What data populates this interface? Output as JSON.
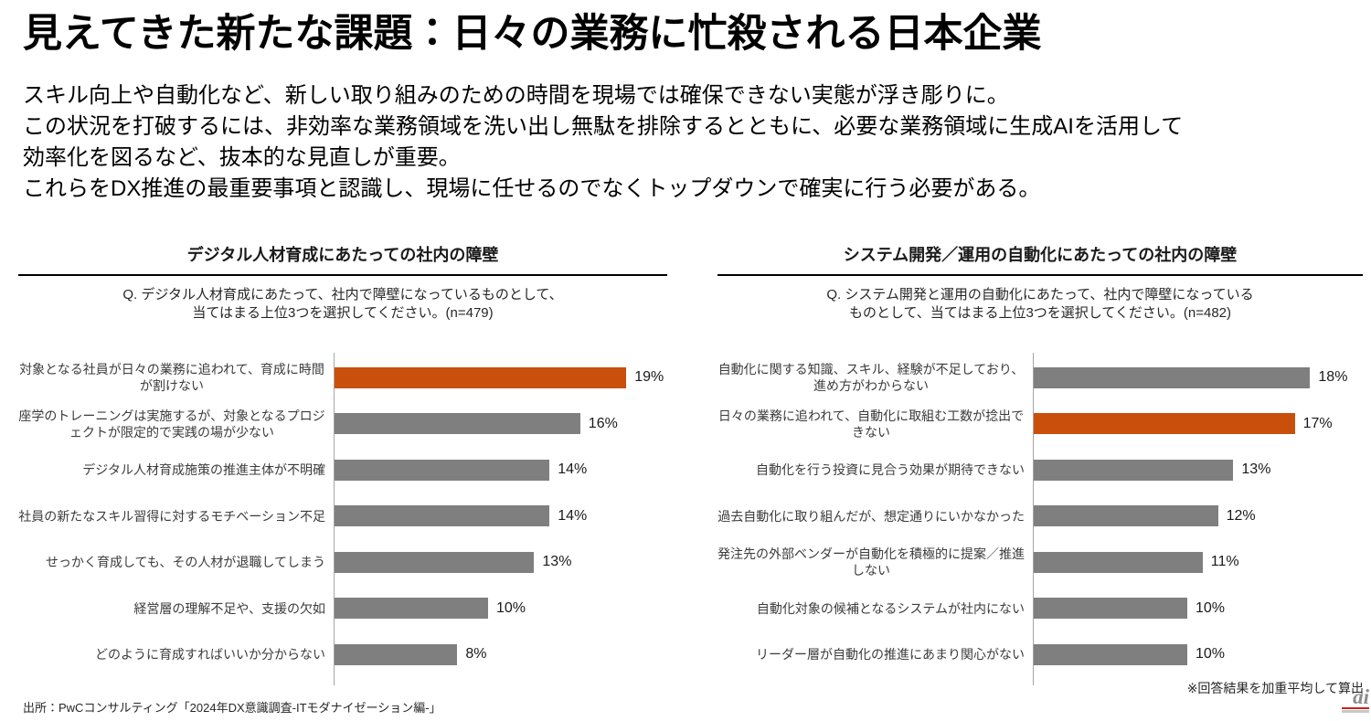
{
  "page": {
    "title": "見えてきた新たな課題：日々の業務に忙殺される日本企業",
    "body_lines": [
      "スキル向上や自動化など、新しい取り組みのための時間を現場では確保できない実態が浮き彫りに。",
      "この状況を打破するには、非効率な業務領域を洗い出し無駄を排除するとともに、必要な業務領域に生成AIを活用して",
      "効率化を図るなど、抜本的な見直しが重要。",
      "これらをDX推進の最重要事項と認識し、現場に任せるのでなくトップダウンで確実に行う必要がある。"
    ],
    "footnote": "※回答結果を加重平均して算出",
    "source": "出所：PwCコンサルティング「2024年DX意識調査-ITモダナイゼーション編-」",
    "logo_text": "ai"
  },
  "colors": {
    "accent_orange": "#C9500C",
    "bar_gray": "#7F7F7F",
    "axis_gray": "#A6A6A6"
  },
  "chart_data": [
    {
      "type": "bar",
      "orientation": "horizontal",
      "title": "デジタル人材育成にあたっての社内の障壁",
      "question_lines": [
        "Q. デジタル人材育成にあたって、社内で障壁になっているものとして、",
        "当てはまる上位3つを選択してください。(n=479)"
      ],
      "categories": [
        "対象となる社員が日々の業務に追われて、育成に時間が割けない",
        "座学のトレーニングは実施するが、対象となるプロジェクトが限定的で実践の場が少ない",
        "デジタル人材育成施策の推進主体が不明確",
        "社員の新たなスキル習得に対するモチベーション不足",
        "せっかく育成しても、その人材が退職してしまう",
        "経営層の理解不足や、支援の欠如",
        "どのように育成すればいいか分からない"
      ],
      "values": [
        19,
        16,
        14,
        14,
        13,
        10,
        8
      ],
      "value_suffix": "%",
      "highlight_index": 0,
      "xlim": [
        0,
        20
      ],
      "grid": false,
      "legend": false
    },
    {
      "type": "bar",
      "orientation": "horizontal",
      "title": "システム開発／運用の自動化にあたっての社内の障壁",
      "question_lines": [
        "Q. システム開発と運用の自動化にあたって、社内で障壁になっている",
        "ものとして、当てはまる上位3つを選択してください。(n=482)"
      ],
      "categories": [
        "自動化に関する知識、スキル、経験が不足しており、進め方がわからない",
        "日々の業務に追われて、自動化に取組む工数が捻出できない",
        "自動化を行う投資に見合う効果が期待できない",
        "過去自動化に取り組んだが、想定通りにいかなかった",
        "発注先の外部ベンダーが自動化を積極的に提案／推進しない",
        "自動化対象の候補となるシステムが社内にない",
        "リーダー層が自動化の推進にあまり関心がない"
      ],
      "values": [
        18,
        17,
        13,
        12,
        11,
        10,
        10
      ],
      "value_suffix": "%",
      "highlight_index": 1,
      "xlim": [
        0,
        20
      ],
      "grid": false,
      "legend": false
    }
  ]
}
